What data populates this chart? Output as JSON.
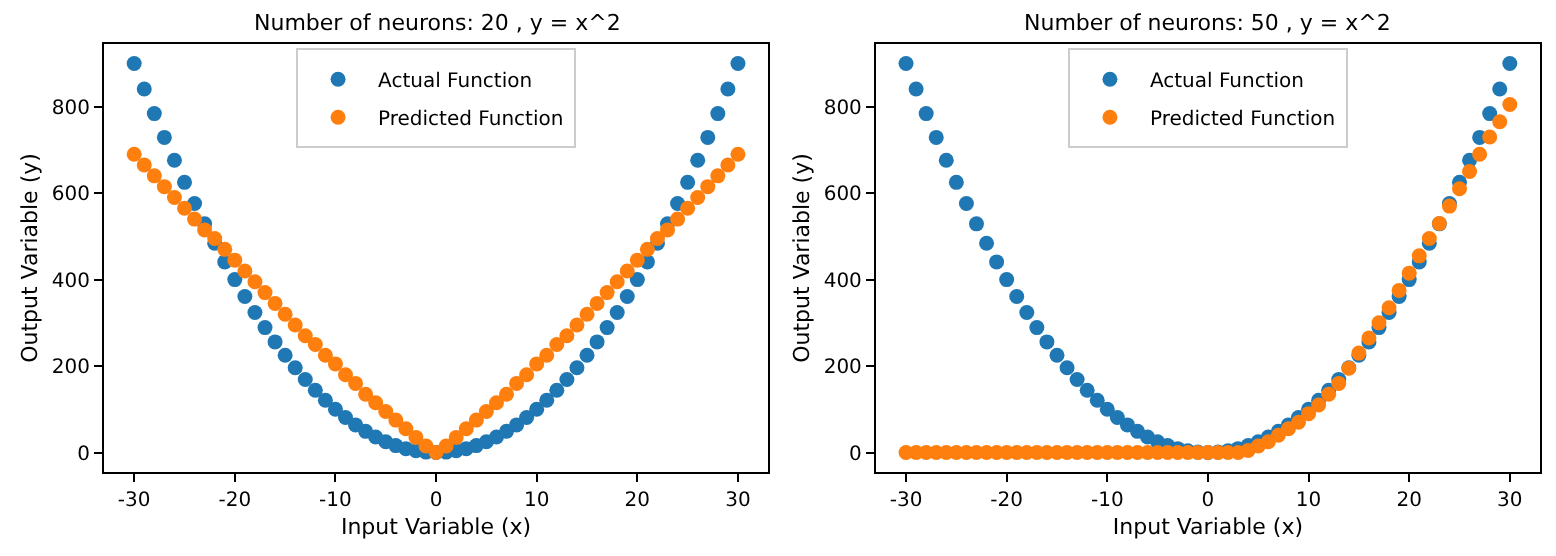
{
  "chart_data": [
    {
      "type": "scatter",
      "title": "Number of neurons: 20 , y = x^2",
      "xlabel": "Input Variable (x)",
      "ylabel": "Output Variable (y)",
      "x": [
        -30,
        -29,
        -28,
        -27,
        -26,
        -25,
        -24,
        -23,
        -22,
        -21,
        -20,
        -19,
        -18,
        -17,
        -16,
        -15,
        -14,
        -13,
        -12,
        -11,
        -10,
        -9,
        -8,
        -7,
        -6,
        -5,
        -4,
        -3,
        -2,
        -1,
        0,
        1,
        2,
        3,
        4,
        5,
        6,
        7,
        8,
        9,
        10,
        11,
        12,
        13,
        14,
        15,
        16,
        17,
        18,
        19,
        20,
        21,
        22,
        23,
        24,
        25,
        26,
        27,
        28,
        29,
        30
      ],
      "series": [
        {
          "name": "Actual Function",
          "color": "#1f77b4",
          "values": [
            900,
            841,
            784,
            729,
            676,
            625,
            576,
            529,
            484,
            441,
            400,
            361,
            324,
            289,
            256,
            225,
            196,
            169,
            144,
            121,
            100,
            81,
            64,
            49,
            36,
            25,
            16,
            9,
            4,
            1,
            0,
            1,
            4,
            9,
            16,
            25,
            36,
            49,
            64,
            81,
            100,
            121,
            144,
            169,
            196,
            225,
            256,
            289,
            324,
            361,
            400,
            441,
            484,
            529,
            576,
            625,
            676,
            729,
            784,
            841,
            900
          ]
        },
        {
          "name": "Predicted Function",
          "color": "#ff7f0e",
          "values": [
            690,
            665,
            640,
            615,
            590,
            565,
            540,
            515,
            495,
            470,
            445,
            420,
            395,
            370,
            345,
            320,
            295,
            270,
            250,
            225,
            205,
            180,
            160,
            135,
            115,
            95,
            75,
            55,
            35,
            15,
            0,
            15,
            35,
            55,
            75,
            95,
            115,
            135,
            160,
            180,
            205,
            225,
            250,
            270,
            295,
            320,
            345,
            370,
            395,
            420,
            445,
            470,
            495,
            515,
            540,
            565,
            590,
            615,
            640,
            665,
            690
          ]
        }
      ],
      "xlim": [
        -33,
        33
      ],
      "xticks": [
        -30,
        -20,
        -10,
        0,
        10,
        20,
        30
      ],
      "ylim": [
        -45,
        945
      ],
      "yticks": [
        0,
        200,
        400,
        600,
        800
      ],
      "legend": "top",
      "marker": "circle"
    },
    {
      "type": "scatter",
      "title": "Number of neurons: 50 , y = x^2",
      "xlabel": "Input Variable (x)",
      "ylabel": "Output Variable (y)",
      "x": [
        -30,
        -29,
        -28,
        -27,
        -26,
        -25,
        -24,
        -23,
        -22,
        -21,
        -20,
        -19,
        -18,
        -17,
        -16,
        -15,
        -14,
        -13,
        -12,
        -11,
        -10,
        -9,
        -8,
        -7,
        -6,
        -5,
        -4,
        -3,
        -2,
        -1,
        0,
        1,
        2,
        3,
        4,
        5,
        6,
        7,
        8,
        9,
        10,
        11,
        12,
        13,
        14,
        15,
        16,
        17,
        18,
        19,
        20,
        21,
        22,
        23,
        24,
        25,
        26,
        27,
        28,
        29,
        30
      ],
      "series": [
        {
          "name": "Actual Function",
          "color": "#1f77b4",
          "values": [
            900,
            841,
            784,
            729,
            676,
            625,
            576,
            529,
            484,
            441,
            400,
            361,
            324,
            289,
            256,
            225,
            196,
            169,
            144,
            121,
            100,
            81,
            64,
            49,
            36,
            25,
            16,
            9,
            4,
            1,
            0,
            1,
            4,
            9,
            16,
            25,
            36,
            49,
            64,
            81,
            100,
            121,
            144,
            169,
            196,
            225,
            256,
            289,
            324,
            361,
            400,
            441,
            484,
            529,
            576,
            625,
            676,
            729,
            784,
            841,
            900
          ]
        },
        {
          "name": "Predicted Function",
          "color": "#ff7f0e",
          "values": [
            0,
            0,
            0,
            0,
            0,
            0,
            0,
            0,
            0,
            0,
            0,
            0,
            0,
            0,
            0,
            0,
            0,
            0,
            0,
            0,
            0,
            0,
            0,
            0,
            0,
            0,
            0,
            0,
            0,
            0,
            0,
            0,
            0,
            0,
            5,
            15,
            25,
            40,
            55,
            70,
            90,
            110,
            135,
            160,
            195,
            230,
            265,
            300,
            335,
            375,
            415,
            455,
            495,
            530,
            570,
            610,
            650,
            690,
            730,
            765,
            805
          ]
        }
      ],
      "xlim": [
        -33,
        33
      ],
      "xticks": [
        -30,
        -20,
        -10,
        0,
        10,
        20,
        30
      ],
      "ylim": [
        -45,
        945
      ],
      "yticks": [
        0,
        200,
        400,
        600,
        800
      ],
      "legend": "top",
      "marker": "circle"
    }
  ]
}
